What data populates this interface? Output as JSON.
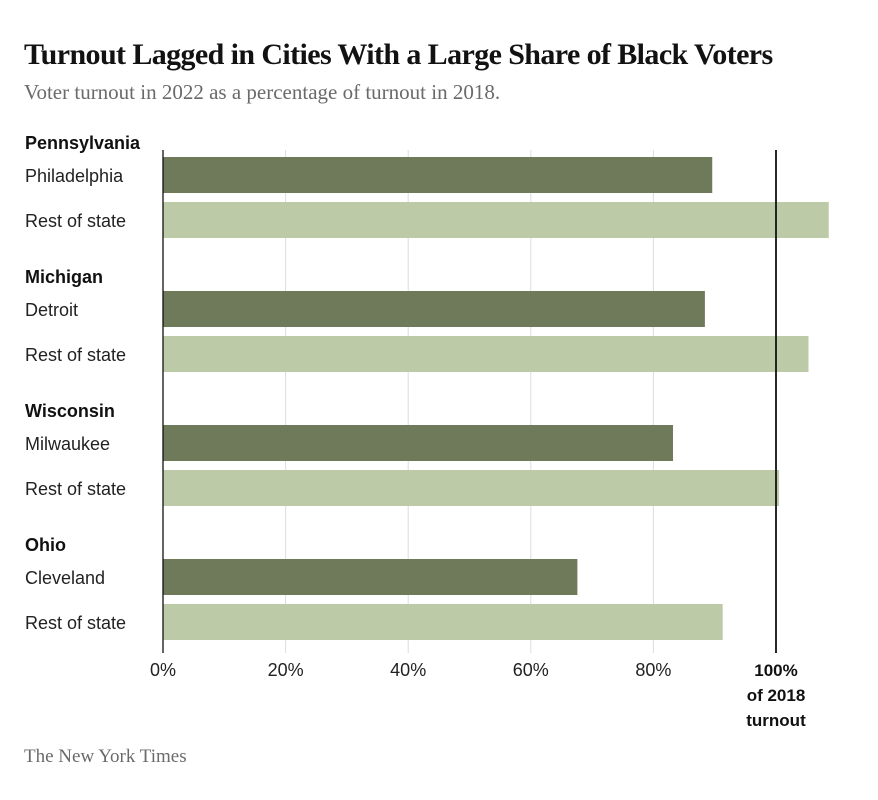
{
  "title": "Turnout Lagged in Cities With a Large Share of Black Voters",
  "subtitle": "Voter turnout in 2022 as a percentage of turnout in 2018.",
  "source": "The New York Times",
  "colors": {
    "city_bar": "#6e7a5a",
    "rest_bar": "#bdcaa8",
    "gridline": "#dddddd",
    "axis": "#111111"
  },
  "chart_data": {
    "type": "bar",
    "orientation": "horizontal",
    "xlim": [
      0,
      100
    ],
    "x_ticks": [
      {
        "value": 0,
        "label": "0%"
      },
      {
        "value": 20,
        "label": "20%"
      },
      {
        "value": 40,
        "label": "40%"
      },
      {
        "value": 60,
        "label": "60%"
      },
      {
        "value": 80,
        "label": "80%"
      }
    ],
    "reference_line": {
      "value": 100,
      "label_lines": [
        "100%",
        "of 2018",
        "turnout"
      ]
    },
    "grid": true,
    "groups": [
      {
        "state": "Pennsylvania",
        "bars": [
          {
            "label": "Philadelphia",
            "value": 89.6,
            "kind": "city"
          },
          {
            "label": "Rest of state",
            "value": 108.6,
            "kind": "rest"
          }
        ]
      },
      {
        "state": "Michigan",
        "bars": [
          {
            "label": "Detroit",
            "value": 88.4,
            "kind": "city"
          },
          {
            "label": "Rest of state",
            "value": 105.3,
            "kind": "rest"
          }
        ]
      },
      {
        "state": "Wisconsin",
        "bars": [
          {
            "label": "Milwaukee",
            "value": 83.2,
            "kind": "city"
          },
          {
            "label": "Rest of state",
            "value": 100.5,
            "kind": "rest"
          }
        ]
      },
      {
        "state": "Ohio",
        "bars": [
          {
            "label": "Cleveland",
            "value": 67.6,
            "kind": "city"
          },
          {
            "label": "Rest of state",
            "value": 91.3,
            "kind": "rest"
          }
        ]
      }
    ]
  }
}
